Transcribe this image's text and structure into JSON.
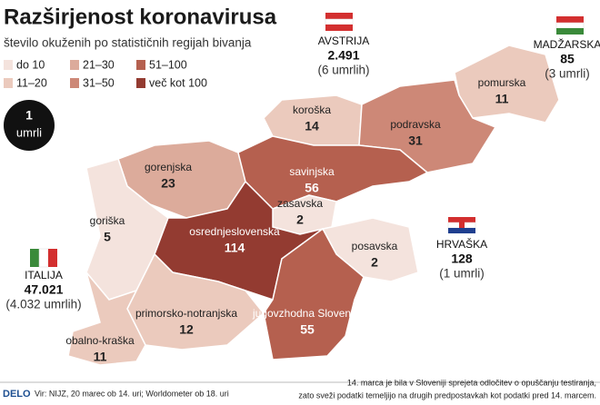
{
  "header": {
    "title": "Razširjenost koronavirusa",
    "subtitle": "število okuženih po statističnih regijah bivanja"
  },
  "legend": [
    {
      "label": "do 10",
      "color": "#f4e3dd"
    },
    {
      "label": "11–20",
      "color": "#ebcabd"
    },
    {
      "label": "21–30",
      "color": "#dcab9b"
    },
    {
      "label": "31–50",
      "color": "#cd8877"
    },
    {
      "label": "51–100",
      "color": "#b5604f"
    },
    {
      "label": "več kot 100",
      "color": "#933b31"
    }
  ],
  "deaths": {
    "value": "1",
    "label": "umrli"
  },
  "regions": [
    {
      "name": "pomurska",
      "value": "11",
      "color": "#ebcabd"
    },
    {
      "name": "koroška",
      "value": "14",
      "color": "#ebcabd"
    },
    {
      "name": "podravska",
      "value": "31",
      "color": "#cd8877"
    },
    {
      "name": "gorenjska",
      "value": "23",
      "color": "#dcab9b"
    },
    {
      "name": "savinjska",
      "value": "56",
      "color": "#b5604f"
    },
    {
      "name": "zasavska",
      "value": "2",
      "color": "#f4e3dd"
    },
    {
      "name": "goriška",
      "value": "5",
      "color": "#f4e3dd"
    },
    {
      "name": "osrednjeslovenska",
      "value": "114",
      "color": "#933b31"
    },
    {
      "name": "posavska",
      "value": "2",
      "color": "#f4e3dd"
    },
    {
      "name": "primorsko-notranjska",
      "value": "12",
      "color": "#ebcabd"
    },
    {
      "name": "jugovzhodna Slovenija",
      "value": "55",
      "color": "#b5604f"
    },
    {
      "name": "obalno-kraška",
      "value": "11",
      "color": "#ebcabd"
    }
  ],
  "countries": [
    {
      "name": "AVSTRIJA",
      "cases": "2.491",
      "deaths": "(6 umrlih)"
    },
    {
      "name": "MADŽARSKA",
      "cases": "85",
      "deaths": "(3 umrli)"
    },
    {
      "name": "HRVAŠKA",
      "cases": "128",
      "deaths": "(1 umrli)"
    },
    {
      "name": "ITALIJA",
      "cases": "47.021",
      "deaths": "(4.032 umrlih)"
    }
  ],
  "footer": {
    "brand": "DELO",
    "source": "Vir: NIJZ, 20 marec ob 14. uri; Worldometer ob 18. uri",
    "note": [
      "14. marca je bila v Sloveniji sprejeta odločitev o opuščanju testiranja,",
      "zato sveži podatki temeljijo na drugih predpostavkah kot podatki pred 14. marcem."
    ]
  }
}
